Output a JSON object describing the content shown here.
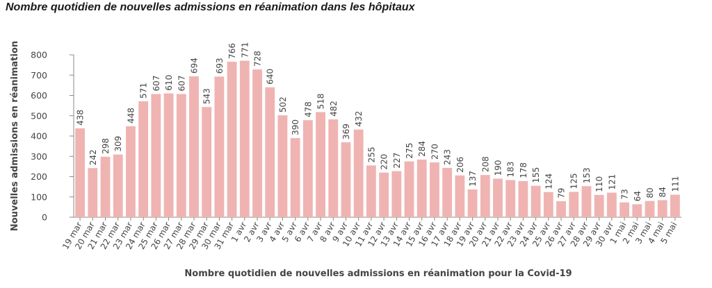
{
  "title": "Nombre quotidien de nouvelles admissions en réanimation dans les hôpitaux",
  "chart_data": {
    "type": "bar",
    "xlabel": "Nombre quotidien de nouvelles admissions en réanimation pour la Covid-19",
    "ylabel": "Nouvelles admissions en réanimation",
    "ylim": [
      0,
      800
    ],
    "yticks": [
      0,
      100,
      200,
      300,
      400,
      500,
      600,
      700,
      800
    ],
    "grid": false,
    "bar_color": "#efb4b2",
    "categories": [
      "19 mar",
      "20 mar",
      "21 mar",
      "22 mar",
      "23 mar",
      "24 mar",
      "25 mar",
      "26 mar",
      "27 mar",
      "28 mar",
      "29 mar",
      "30 mar",
      "31 mar",
      "1 avr",
      "2 avr",
      "3 avr",
      "4 avr",
      "5 avr",
      "6 avr",
      "7 avr",
      "8 avr",
      "9 avr",
      "10 avr",
      "11 avr",
      "12 avr",
      "13 avr",
      "14 avr",
      "15 avr",
      "16 avr",
      "17 avr",
      "18 avr",
      "19 avr",
      "20 avr",
      "21 avr",
      "22 avr",
      "23 avr",
      "24 avr",
      "25 avr",
      "26 avr",
      "27 avr",
      "28 avr",
      "29 avr",
      "30 avr",
      "1 mai",
      "2 mai",
      "3 mai",
      "4 mai",
      "5 mai"
    ],
    "values": [
      438,
      242,
      298,
      309,
      448,
      571,
      607,
      610,
      607,
      694,
      543,
      693,
      766,
      771,
      728,
      640,
      502,
      390,
      478,
      518,
      482,
      369,
      432,
      255,
      220,
      227,
      275,
      284,
      270,
      243,
      206,
      137,
      208,
      190,
      183,
      178,
      155,
      124,
      79,
      125,
      153,
      110,
      121,
      73,
      64,
      80,
      84,
      111
    ]
  }
}
